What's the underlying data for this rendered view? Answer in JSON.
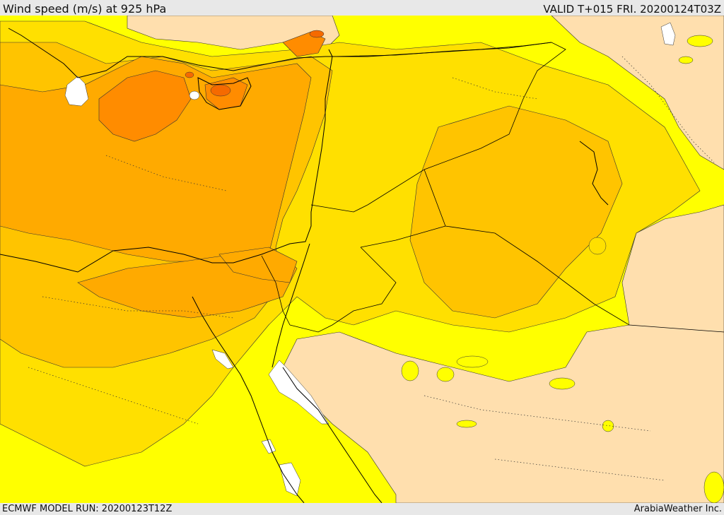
{
  "header": {
    "title": "Wind speed (m/s) at 925 hPa",
    "valid": "VALID T+015 FRI. 20200124T03Z"
  },
  "footer": {
    "model_run": "ECMWF MODEL RUN: 20200123T12Z",
    "credit": "ArabiaWeather Inc."
  },
  "colors": {
    "low": "#ffdfae",
    "yellow": "#ffff00",
    "gold": "#ffe000",
    "amber": "#ffc400",
    "orange": "#ffaa00",
    "dark_orange": "#ff8c00",
    "deep_orange": "#f56a00",
    "water_no_data": "#ffffff",
    "boundary": "#000000"
  }
}
